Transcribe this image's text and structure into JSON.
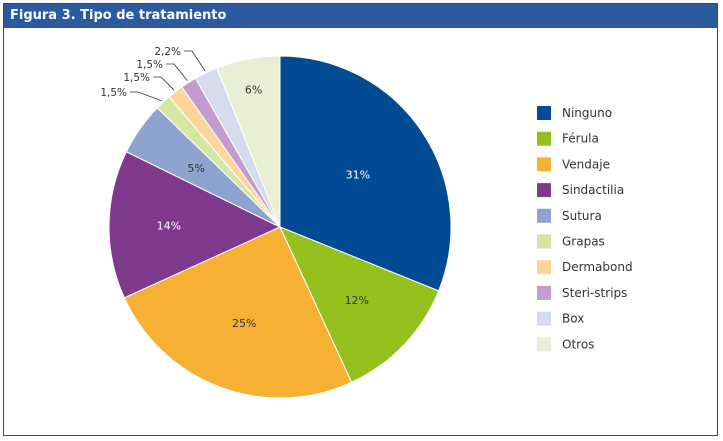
{
  "chart_data": {
    "type": "pie",
    "title": "Figura 3. Tipo de tratamiento",
    "categories": [
      "Ninguno",
      "Férula",
      "Vendaje",
      "Sindactilia",
      "Sutura",
      "Grapas",
      "Dermabond",
      "Steri-strips",
      "Box",
      "Otros"
    ],
    "values": [
      31,
      12,
      25,
      14,
      5,
      1.5,
      1.5,
      1.5,
      2.2,
      6
    ],
    "labels": [
      "31%",
      "12%",
      "25%",
      "14%",
      "5%",
      "1,5%",
      "1,5%",
      "1,5%",
      "2,2%",
      "6%"
    ],
    "colors": [
      "#004b93",
      "#95c11f",
      "#f6b034",
      "#7f3a8d",
      "#8fa3cf",
      "#d6e6a3",
      "#fbd59c",
      "#c19ccd",
      "#d5dcee",
      "#e9efd5"
    ],
    "label_colors": [
      "#ffffff",
      "#333333",
      "#333333",
      "#ffffff",
      "#333333",
      "#333333",
      "#333333",
      "#333333",
      "#333333",
      "#333333"
    ],
    "legend_position": "right"
  }
}
